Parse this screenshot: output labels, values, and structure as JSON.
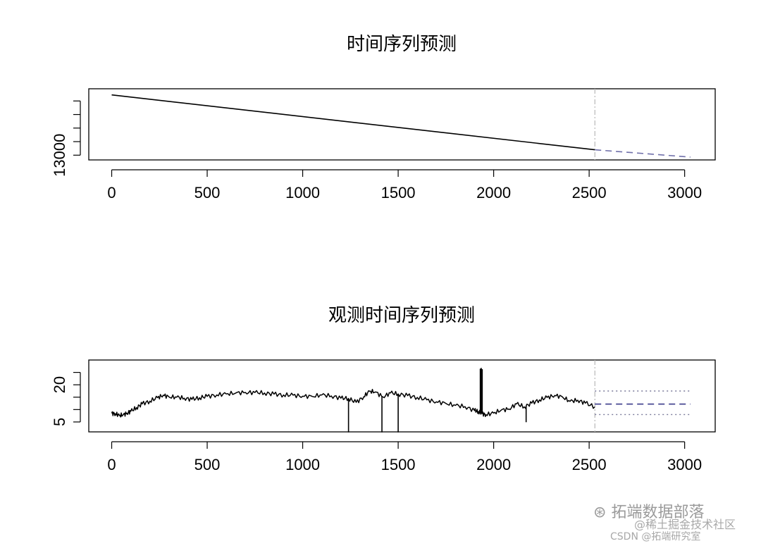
{
  "chart_data": [
    {
      "type": "line",
      "title": "时间序列预测",
      "xlabel": "",
      "ylabel": "",
      "xlim": [
        -120,
        3160
      ],
      "ylim": [
        12650,
        17900
      ],
      "x_ticks": [
        0,
        500,
        1000,
        1500,
        2000,
        2500,
        3000
      ],
      "y_ticks": [
        13000,
        14000,
        15000,
        16000,
        17000
      ],
      "y_tick_labels": [
        "13000",
        "",
        "",
        "",
        ""
      ],
      "forecast_origin": 2530,
      "series": [
        {
          "style": "solid",
          "color": "#000000",
          "x": [
            0,
            2530
          ],
          "y": [
            17450,
            13400
          ]
        },
        {
          "style": "dashed",
          "color": "#7070aa",
          "x": [
            2530,
            3030
          ],
          "y": [
            13400,
            12860
          ]
        }
      ],
      "grid": false
    },
    {
      "type": "line",
      "title": "观测时间序列预测",
      "xlabel": "",
      "ylabel": "",
      "xlim": [
        -120,
        3160
      ],
      "ylim": [
        1,
        30
      ],
      "x_ticks": [
        0,
        500,
        1000,
        1500,
        2000,
        2500,
        3000
      ],
      "y_ticks": [
        5,
        10,
        15,
        20,
        25
      ],
      "y_tick_labels": [
        "5",
        "",
        "",
        "20",
        ""
      ],
      "forecast_origin": 2530,
      "observed": {
        "x": [
          0,
          20,
          40,
          60,
          80,
          100,
          130,
          160,
          200,
          240,
          270,
          300,
          340,
          380,
          420,
          460,
          500,
          550,
          600,
          650,
          700,
          750,
          800,
          850,
          900,
          950,
          1000,
          1050,
          1100,
          1150,
          1200,
          1240,
          1280,
          1320,
          1350,
          1380,
          1420,
          1460,
          1500,
          1550,
          1600,
          1650,
          1700,
          1750,
          1800,
          1850,
          1900,
          1920,
          1940,
          1960,
          2000,
          2040,
          2080,
          2120,
          2160,
          2200,
          2240,
          2280,
          2320,
          2360,
          2400,
          2440,
          2480,
          2530
        ],
        "y": [
          8.5,
          8.3,
          7.6,
          7.9,
          8.5,
          9.3,
          10.8,
          12.3,
          13.4,
          14.8,
          15.8,
          15.1,
          15.0,
          14.6,
          14.1,
          14.8,
          15.3,
          15.9,
          16.3,
          16.7,
          16.9,
          16.9,
          16.7,
          16.2,
          15.9,
          15.8,
          15.4,
          15.3,
          15.9,
          15.5,
          14.6,
          14.5,
          12.9,
          15.2,
          17.4,
          17.1,
          15.1,
          16.7,
          16.3,
          15.6,
          14.9,
          13.9,
          13.1,
          12.5,
          11.7,
          11.2,
          9.6,
          9.2,
          8.4,
          7.9,
          8.6,
          9.8,
          10.2,
          12.3,
          11.1,
          12.6,
          13.9,
          14.9,
          15.7,
          15.1,
          13.3,
          13.8,
          12.6,
          11.1
        ],
        "spikes": [
          {
            "x": 1240,
            "y": 0.8
          },
          {
            "x": 1415,
            "y": 0.8
          },
          {
            "x": 1500,
            "y": 0.8
          },
          {
            "x": 2170,
            "y": 4.9
          },
          {
            "x": 1930,
            "y": 26.5
          },
          {
            "x": 1935,
            "y": 26.8
          },
          {
            "x": 1940,
            "y": 26.3
          }
        ]
      },
      "forecast": {
        "mean": {
          "style": "dashed",
          "color": "#3a3a8a",
          "x": [
            2530,
            3030
          ],
          "y": [
            12.2,
            12.2
          ]
        },
        "upper": {
          "style": "dotted",
          "color": "#7a7a9a",
          "x": [
            2530,
            3030
          ],
          "y": [
            17.5,
            17.5
          ]
        },
        "lower": {
          "style": "dotted",
          "color": "#7a7a9a",
          "x": [
            2530,
            3030
          ],
          "y": [
            8.0,
            8.0
          ]
        }
      },
      "grid": false
    }
  ],
  "watermark": {
    "main": "拓端数据部落",
    "sub": "@稀土掘金技术社区",
    "csdn": "CSDN @拓端研究室"
  }
}
